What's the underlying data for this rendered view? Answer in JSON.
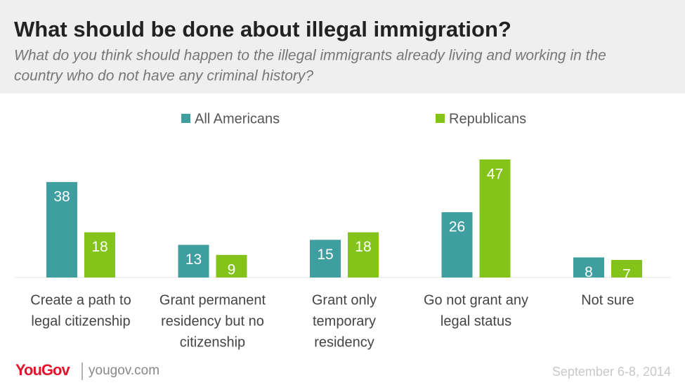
{
  "chart_data": {
    "type": "bar",
    "title": "What should be done about illegal immigration?",
    "subtitle": [
      "What do you think should happen to the illegal immigrants already living and working in the",
      "country who do not have any criminal history?"
    ],
    "categories": [
      [
        "Create a path to",
        "legal citizenship"
      ],
      [
        "Grant permanent",
        "residency but no",
        "citizenship"
      ],
      [
        "Grant only",
        "temporary",
        "residency"
      ],
      [
        "Go not grant any",
        "legal status"
      ],
      [
        "Not sure"
      ]
    ],
    "series": [
      {
        "name": "All Americans",
        "color": "#3f9ea0",
        "values": [
          38,
          13,
          15,
          26,
          8
        ]
      },
      {
        "name": "Republicans",
        "color": "#84c41a",
        "values": [
          18,
          9,
          18,
          47,
          7
        ]
      }
    ],
    "legend": "top"
  },
  "footer": {
    "logo": "YouGov",
    "site": "yougov.com",
    "date": "September 6-8, 2014"
  }
}
